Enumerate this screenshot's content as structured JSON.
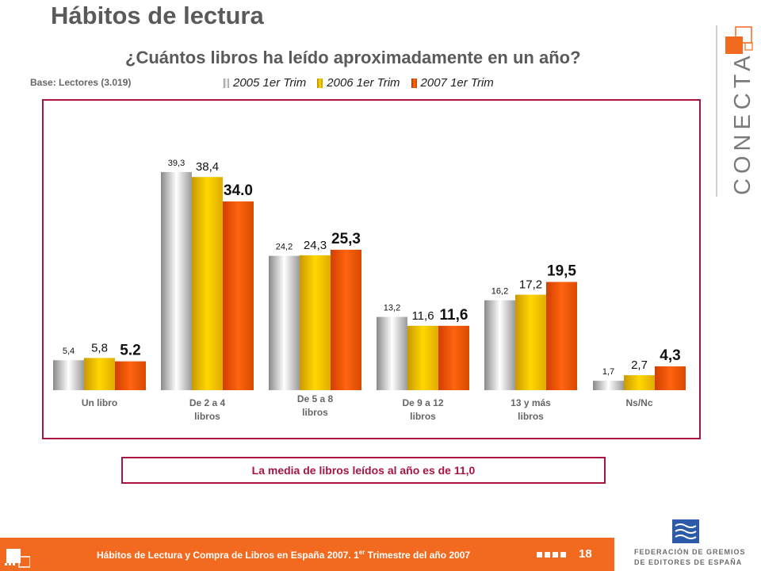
{
  "header": {
    "title": "Hábitos de lectura",
    "subtitle": "¿Cuántos libros ha leído aproximadamente en un año?",
    "base": "Base:  Lectores (3.019)"
  },
  "colors": {
    "series_2005": "#c8c8c8",
    "series_2006": "#f5c400",
    "series_2007": "#f05a10",
    "frame": "#a8153f",
    "footer": "#f26a1f"
  },
  "chart_data": {
    "type": "bar",
    "categories": [
      "Un libro",
      "De 2 a 4 libros",
      "De 5 a 8 libros",
      "De 9 a 12 libros",
      "13 y más libros",
      "Ns/Nc"
    ],
    "series": [
      {
        "name": "2005 1er Trim",
        "values": [
          5.4,
          39.3,
          24.2,
          13.2,
          16.2,
          1.7
        ],
        "labels": [
          "5,4",
          "39,3",
          "24,2",
          "13,2",
          "16,2",
          "1,7"
        ]
      },
      {
        "name": "2006 1er Trim",
        "values": [
          5.8,
          38.4,
          24.3,
          11.6,
          17.2,
          2.7
        ],
        "labels": [
          "5,8",
          "38,4",
          "24,3",
          "11,6",
          "17,2",
          "2,7"
        ]
      },
      {
        "name": "2007 1er Trim",
        "values": [
          5.2,
          34.0,
          25.3,
          11.6,
          19.5,
          4.3
        ],
        "labels": [
          "5.2",
          "34.0",
          "25,3",
          "11,6",
          "19,5",
          "4,3"
        ]
      }
    ],
    "legend_position": "top",
    "grid": false
  },
  "summary": "La media de libros leídos al año es de 11,0",
  "footer": {
    "text": "Hábitos de Lectura y Compra de Libros en España 2007. 1",
    "sup": "er",
    "text_end": " Trimestre del año 2007",
    "page": "18"
  },
  "brand": {
    "conecta": "CONECTA",
    "federacion_line1": "FEDERACIÓN DE GREMIOS",
    "federacion_line2": "DE EDITORES DE ESPAÑA"
  }
}
